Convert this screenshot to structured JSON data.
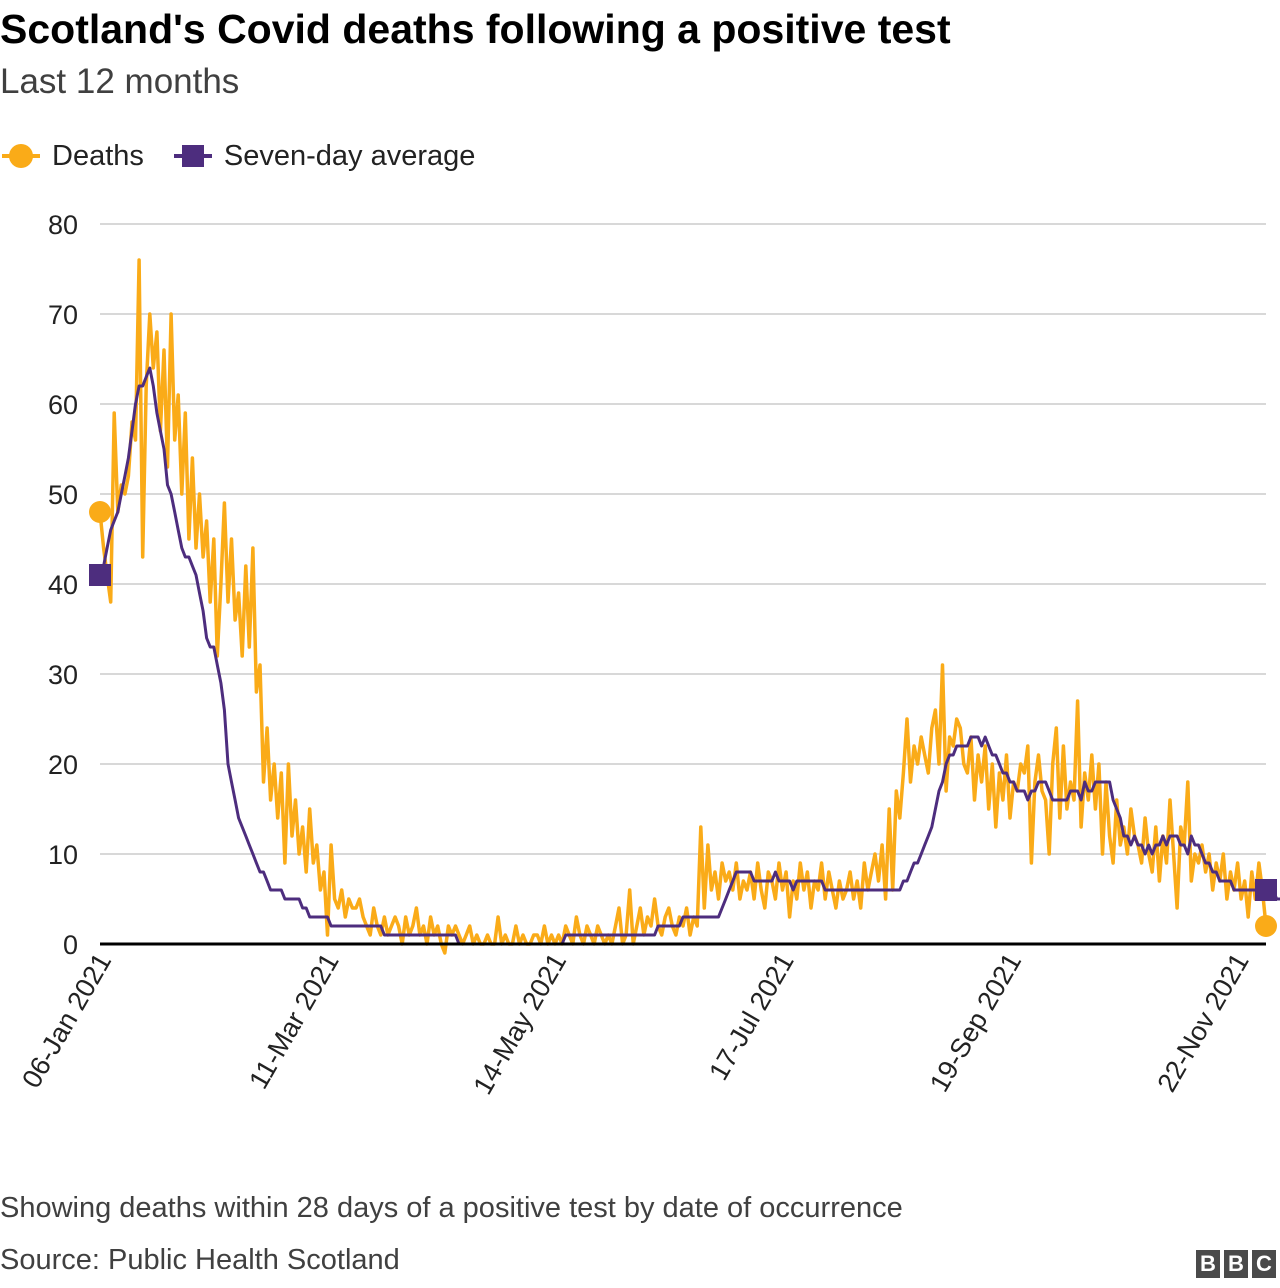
{
  "header": {
    "title": "Scotland's Covid deaths following a positive test",
    "subtitle": "Last 12 months"
  },
  "footer": {
    "note": "Showing deaths within 28 days of a positive test by date of occurrence",
    "source": "Source: Public Health Scotland",
    "logo_letters": [
      "B",
      "B",
      "C"
    ]
  },
  "colors": {
    "deaths": "#faab18",
    "average": "#4d2d7e",
    "grid": "#cccccc",
    "baseline": "#000000",
    "text": "#222222"
  },
  "chart_data": {
    "type": "line",
    "title": "Scotland's Covid deaths following a positive test",
    "subtitle": "Last 12 months",
    "xlabel": "",
    "ylabel": "",
    "ylim": [
      0,
      80
    ],
    "yticks": [
      0,
      10,
      20,
      30,
      40,
      50,
      60,
      70,
      80
    ],
    "x_start": "06-Jan 2021",
    "x_tick_labels": [
      "06-Jan 2021",
      "11-Mar 2021",
      "14-May 2021",
      "17-Jul 2021",
      "19-Sep 2021",
      "22-Nov 2021"
    ],
    "x_tick_day_offsets": [
      0,
      64,
      128,
      192,
      256,
      320
    ],
    "grid": true,
    "legend_position": "top-left",
    "series": [
      {
        "name": "Deaths",
        "marker": "circle",
        "values": [
          48,
          44,
          41,
          38,
          59,
          48,
          51,
          50,
          52,
          58,
          56,
          76,
          43,
          62,
          70,
          64,
          68,
          57,
          66,
          53,
          70,
          56,
          61,
          50,
          59,
          45,
          54,
          44,
          50,
          43,
          47,
          38,
          45,
          32,
          40,
          49,
          38,
          45,
          36,
          39,
          32,
          42,
          33,
          44,
          28,
          31,
          18,
          24,
          16,
          20,
          14,
          19,
          9,
          20,
          12,
          16,
          10,
          13,
          8,
          15,
          9,
          11,
          6,
          8,
          1,
          11,
          5,
          4,
          6,
          3,
          5,
          4,
          4,
          5,
          3,
          2,
          1,
          4,
          2,
          1,
          3,
          1,
          2,
          3,
          2,
          0,
          3,
          1,
          2,
          4,
          1,
          2,
          0,
          3,
          1,
          2,
          0,
          -1,
          2,
          1,
          2,
          1,
          0,
          1,
          2,
          0,
          1,
          0,
          0,
          1,
          0,
          0,
          3,
          0,
          1,
          0,
          0,
          2,
          0,
          1,
          0,
          0,
          1,
          1,
          0,
          2,
          0,
          1,
          0,
          1,
          0,
          2,
          1,
          0,
          3,
          1,
          0,
          2,
          1,
          0,
          2,
          1,
          0,
          1,
          0,
          2,
          4,
          0,
          1,
          6,
          0,
          2,
          4,
          1,
          3,
          2,
          5,
          2,
          1,
          3,
          4,
          2,
          1,
          3,
          2,
          4,
          1,
          3,
          2,
          13,
          4,
          11,
          6,
          8,
          5,
          9,
          7,
          8,
          6,
          9,
          5,
          7,
          6,
          8,
          5,
          9,
          6,
          4,
          8,
          7,
          5,
          9,
          6,
          8,
          3,
          7,
          5,
          9,
          6,
          8,
          4,
          7,
          6,
          9,
          5,
          8,
          6,
          4,
          7,
          5,
          6,
          8,
          5,
          7,
          4,
          9,
          6,
          8,
          10,
          7,
          11,
          5,
          15,
          6,
          17,
          14,
          19,
          25,
          18,
          22,
          20,
          23,
          21,
          19,
          24,
          26,
          20,
          31,
          17,
          23,
          22,
          25,
          24,
          20,
          19,
          23,
          16,
          21,
          18,
          22,
          15,
          20,
          13,
          19,
          16,
          21,
          14,
          18,
          17,
          20,
          19,
          22,
          9,
          18,
          21,
          17,
          16,
          10,
          20,
          24,
          14,
          22,
          15,
          18,
          16,
          27,
          13,
          19,
          16,
          21,
          15,
          20,
          10,
          18,
          12,
          9,
          16,
          11,
          13,
          10,
          15,
          12,
          11,
          9,
          14,
          10,
          8,
          13,
          7,
          12,
          9,
          16,
          10,
          4,
          13,
          11,
          18,
          7,
          10,
          9,
          11,
          8,
          10,
          6,
          9,
          7,
          10,
          5,
          8,
          6,
          9,
          5,
          7,
          3,
          8,
          5,
          9,
          6,
          2
        ]
      },
      {
        "name": "Seven-day average",
        "marker": "square",
        "values": [
          41,
          42,
          44,
          46,
          47,
          48,
          50,
          52,
          54,
          57,
          60,
          62,
          62,
          63,
          64,
          62,
          59,
          57,
          55,
          51,
          50,
          48,
          46,
          44,
          43,
          43,
          42,
          41,
          39,
          37,
          34,
          33,
          33,
          31,
          29,
          26,
          20,
          18,
          16,
          14,
          13,
          12,
          11,
          10,
          9,
          8,
          8,
          7,
          6,
          6,
          6,
          6,
          5,
          5,
          5,
          5,
          5,
          4,
          4,
          3,
          3,
          3,
          3,
          3,
          3,
          2,
          2,
          2,
          2,
          2,
          2,
          2,
          2,
          2,
          2,
          2,
          2,
          2,
          2,
          2,
          1,
          1,
          1,
          1,
          1,
          1,
          1,
          1,
          1,
          1,
          1,
          1,
          1,
          1,
          1,
          1,
          1,
          1,
          1,
          1,
          1,
          0,
          0,
          0,
          0,
          0,
          0,
          0,
          0,
          0,
          0,
          0,
          0,
          0,
          0,
          0,
          0,
          0,
          0,
          0,
          0,
          0,
          0,
          0,
          0,
          0,
          0,
          0,
          0,
          0,
          0,
          1,
          1,
          1,
          1,
          1,
          1,
          1,
          1,
          1,
          1,
          1,
          1,
          1,
          1,
          1,
          1,
          1,
          1,
          1,
          1,
          1,
          1,
          1,
          1,
          1,
          1,
          2,
          2,
          2,
          2,
          2,
          2,
          2,
          3,
          3,
          3,
          3,
          3,
          3,
          3,
          3,
          3,
          3,
          3,
          4,
          5,
          6,
          7,
          8,
          8,
          8,
          8,
          8,
          7,
          7,
          7,
          7,
          7,
          7,
          8,
          7,
          7,
          7,
          7,
          6,
          7,
          7,
          7,
          7,
          7,
          7,
          7,
          7,
          6,
          6,
          6,
          6,
          6,
          6,
          6,
          6,
          6,
          6,
          6,
          6,
          6,
          6,
          6,
          6,
          6,
          6,
          6,
          6,
          6,
          6,
          7,
          7,
          8,
          9,
          9,
          10,
          11,
          12,
          13,
          15,
          17,
          18,
          20,
          21,
          21,
          22,
          22,
          22,
          22,
          23,
          23,
          23,
          22,
          23,
          22,
          21,
          21,
          20,
          19,
          19,
          18,
          18,
          17,
          17,
          17,
          16,
          17,
          17,
          18,
          18,
          18,
          17,
          16,
          16,
          16,
          16,
          16,
          17,
          17,
          17,
          16,
          18,
          17,
          17,
          18,
          18,
          18,
          18,
          18,
          16,
          15,
          14,
          12,
          12,
          11,
          12,
          11,
          11,
          10,
          11,
          10,
          11,
          11,
          12,
          11,
          12,
          12,
          12,
          11,
          11,
          10,
          12,
          11,
          11,
          10,
          9,
          9,
          8,
          8,
          7,
          7,
          7,
          7,
          6,
          6,
          6,
          6,
          6,
          6,
          6,
          6,
          6,
          6,
          6,
          6,
          5,
          5,
          5,
          5,
          5,
          5
        ]
      }
    ]
  }
}
